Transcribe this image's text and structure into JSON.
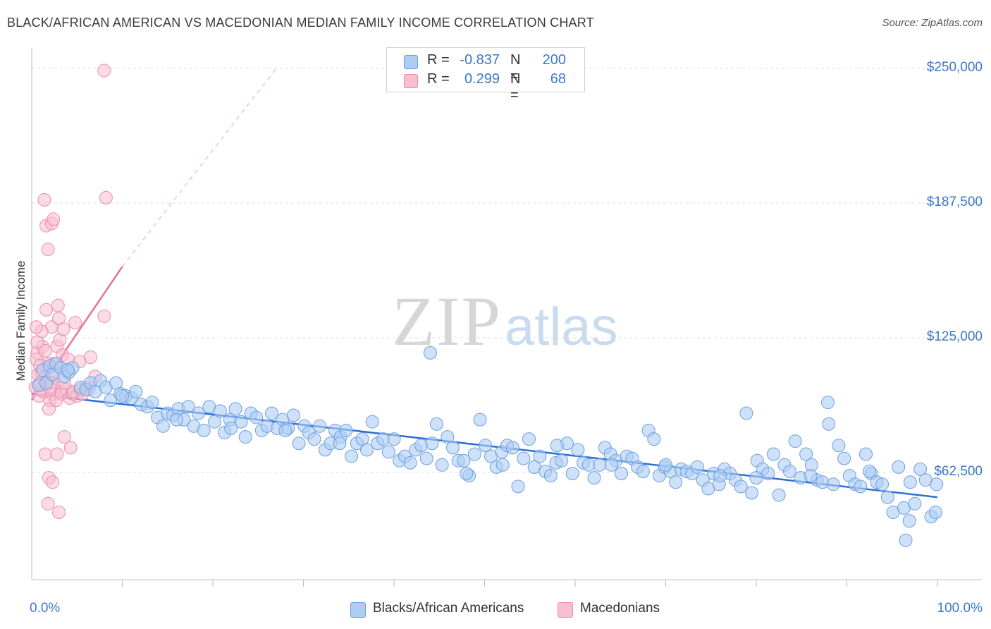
{
  "header": {
    "title": "BLACK/AFRICAN AMERICAN VS MACEDONIAN MEDIAN FAMILY INCOME CORRELATION CHART",
    "source": "Source: ZipAtlas.com"
  },
  "watermark": {
    "zip": "ZIP",
    "atlas": "atlas"
  },
  "legend": {
    "rows": [
      {
        "r_label": "R =",
        "r_value": "-0.837",
        "n_label": "N =",
        "n_value": "200",
        "color": "#aecdf3"
      },
      {
        "r_label": "R =",
        "r_value": "0.299",
        "n_label": "N =",
        "n_value": "68",
        "color": "#f8bfd0"
      }
    ]
  },
  "colors": {
    "blue_fill": "#aecdf3",
    "blue_stroke": "#6a9fe0",
    "blue_line": "#2b6fd4",
    "pink_fill": "#f8bfd0",
    "pink_stroke": "#ee8ab0",
    "pink_line": "#e8729c",
    "tick_text": "#3c78c8"
  },
  "chart_data": {
    "type": "scatter",
    "title": "BLACK/AFRICAN AMERICAN VS MACEDONIAN MEDIAN FAMILY INCOME CORRELATION CHART",
    "xlabel": "",
    "ylabel": "Median Family Income",
    "xlim": [
      0,
      100
    ],
    "ylim": [
      7000,
      260000
    ],
    "x_tick_labels": [
      "0.0%",
      "100.0%"
    ],
    "y_ticks": [
      {
        "value": 250000,
        "label": "$250,000"
      },
      {
        "value": 187500,
        "label": "$187,500"
      },
      {
        "value": 125000,
        "label": "$125,000"
      },
      {
        "value": 62500,
        "label": "$62,500"
      }
    ],
    "grid": true,
    "series": [
      {
        "name": "Blacks/African Americans",
        "trend": {
          "x0": 0,
          "y0": 99000,
          "x1": 100,
          "y1": 51000
        },
        "points": [
          [
            0.8,
            103000
          ],
          [
            1.2,
            110000
          ],
          [
            1.6,
            104000
          ],
          [
            2.0,
            112000
          ],
          [
            2.3,
            108000
          ],
          [
            2.7,
            113000
          ],
          [
            3.2,
            111000
          ],
          [
            3.6,
            107000
          ],
          [
            4.1,
            109000
          ],
          [
            4.5,
            111000
          ],
          [
            5.4,
            102000
          ],
          [
            6.0,
            101000
          ],
          [
            6.5,
            104000
          ],
          [
            7.0,
            100000
          ],
          [
            7.6,
            105000
          ],
          [
            8.2,
            102000
          ],
          [
            8.7,
            96000
          ],
          [
            9.3,
            104000
          ],
          [
            9.8,
            99000
          ],
          [
            10.4,
            98000
          ],
          [
            11.0,
            97000
          ],
          [
            11.5,
            100000
          ],
          [
            12.1,
            94000
          ],
          [
            12.8,
            93000
          ],
          [
            13.3,
            95000
          ],
          [
            13.9,
            88000
          ],
          [
            14.5,
            84000
          ],
          [
            15.0,
            90000
          ],
          [
            15.6,
            89000
          ],
          [
            16.2,
            92000
          ],
          [
            16.8,
            87000
          ],
          [
            17.3,
            93000
          ],
          [
            17.9,
            84000
          ],
          [
            18.4,
            90000
          ],
          [
            19.0,
            82000
          ],
          [
            19.6,
            93000
          ],
          [
            20.2,
            86000
          ],
          [
            20.8,
            91000
          ],
          [
            21.3,
            81000
          ],
          [
            21.9,
            87000
          ],
          [
            22.5,
            92000
          ],
          [
            23.1,
            86000
          ],
          [
            23.6,
            79000
          ],
          [
            24.2,
            90000
          ],
          [
            24.8,
            88000
          ],
          [
            25.4,
            82000
          ],
          [
            26.0,
            84000
          ],
          [
            26.5,
            90000
          ],
          [
            27.1,
            83000
          ],
          [
            27.7,
            87000
          ],
          [
            28.3,
            83000
          ],
          [
            28.9,
            89000
          ],
          [
            29.5,
            76000
          ],
          [
            30.1,
            84000
          ],
          [
            30.6,
            81000
          ],
          [
            31.2,
            78000
          ],
          [
            31.8,
            84000
          ],
          [
            32.4,
            73000
          ],
          [
            33.0,
            76000
          ],
          [
            33.5,
            82000
          ],
          [
            34.1,
            79000
          ],
          [
            34.7,
            82000
          ],
          [
            35.3,
            70000
          ],
          [
            35.9,
            76000
          ],
          [
            36.5,
            78000
          ],
          [
            37.0,
            73000
          ],
          [
            37.6,
            86000
          ],
          [
            38.2,
            76000
          ],
          [
            38.8,
            78000
          ],
          [
            39.4,
            72000
          ],
          [
            40.0,
            78000
          ],
          [
            40.6,
            68000
          ],
          [
            41.2,
            70000
          ],
          [
            41.8,
            67000
          ],
          [
            42.4,
            73000
          ],
          [
            43.0,
            75000
          ],
          [
            43.6,
            69000
          ],
          [
            44.2,
            76000
          ],
          [
            44.7,
            85000
          ],
          [
            45.3,
            66000
          ],
          [
            45.9,
            79000
          ],
          [
            46.5,
            74000
          ],
          [
            47.1,
            68000
          ],
          [
            47.7,
            68000
          ],
          [
            48.3,
            61000
          ],
          [
            48.9,
            71000
          ],
          [
            49.5,
            87000
          ],
          [
            50.1,
            75000
          ],
          [
            50.7,
            70000
          ],
          [
            51.3,
            65000
          ],
          [
            51.9,
            72000
          ],
          [
            52.5,
            75000
          ],
          [
            53.1,
            74000
          ],
          [
            53.7,
            56000
          ],
          [
            54.3,
            69000
          ],
          [
            54.9,
            78000
          ],
          [
            55.5,
            65000
          ],
          [
            56.1,
            70000
          ],
          [
            56.7,
            63000
          ],
          [
            57.3,
            61000
          ],
          [
            57.9,
            67000
          ],
          [
            58.5,
            68000
          ],
          [
            59.1,
            76000
          ],
          [
            59.7,
            62000
          ],
          [
            60.3,
            73000
          ],
          [
            60.9,
            67000
          ],
          [
            61.5,
            66000
          ],
          [
            62.1,
            60000
          ],
          [
            62.7,
            66000
          ],
          [
            63.3,
            74000
          ],
          [
            63.9,
            71000
          ],
          [
            64.5,
            68000
          ],
          [
            65.1,
            62000
          ],
          [
            65.7,
            70000
          ],
          [
            66.3,
            69000
          ],
          [
            66.9,
            65000
          ],
          [
            67.5,
            63000
          ],
          [
            68.1,
            82000
          ],
          [
            68.7,
            78000
          ],
          [
            69.3,
            61000
          ],
          [
            69.9,
            65000
          ],
          [
            70.5,
            63000
          ],
          [
            71.1,
            58000
          ],
          [
            71.7,
            64000
          ],
          [
            72.3,
            63000
          ],
          [
            72.9,
            62000
          ],
          [
            73.5,
            65000
          ],
          [
            74.1,
            59000
          ],
          [
            74.7,
            55000
          ],
          [
            75.3,
            62000
          ],
          [
            75.9,
            57000
          ],
          [
            76.5,
            64000
          ],
          [
            77.1,
            62000
          ],
          [
            77.7,
            59000
          ],
          [
            78.3,
            56000
          ],
          [
            78.9,
            90000
          ],
          [
            79.5,
            53000
          ],
          [
            80.1,
            68000
          ],
          [
            80.7,
            64000
          ],
          [
            81.3,
            62000
          ],
          [
            81.9,
            71000
          ],
          [
            82.5,
            52000
          ],
          [
            83.1,
            66000
          ],
          [
            83.7,
            63000
          ],
          [
            84.3,
            77000
          ],
          [
            84.9,
            60000
          ],
          [
            85.5,
            71000
          ],
          [
            86.1,
            66000
          ],
          [
            86.7,
            59000
          ],
          [
            87.3,
            58000
          ],
          [
            87.9,
            95000
          ],
          [
            88.5,
            57000
          ],
          [
            89.1,
            75000
          ],
          [
            89.7,
            69000
          ],
          [
            90.3,
            61000
          ],
          [
            90.9,
            57000
          ],
          [
            91.5,
            56000
          ],
          [
            92.1,
            71000
          ],
          [
            92.7,
            62000
          ],
          [
            93.3,
            58000
          ],
          [
            93.9,
            57000
          ],
          [
            94.5,
            51000
          ],
          [
            95.1,
            44000
          ],
          [
            95.7,
            65000
          ],
          [
            96.3,
            46000
          ],
          [
            96.9,
            40000
          ],
          [
            97.5,
            48000
          ],
          [
            98.1,
            64000
          ],
          [
            98.7,
            59000
          ],
          [
            99.3,
            42000
          ],
          [
            99.8,
            44000
          ],
          [
            99.9,
            57000
          ],
          [
            48.0,
            62000
          ],
          [
            52.0,
            66000
          ],
          [
            58.0,
            75000
          ],
          [
            64.0,
            66000
          ],
          [
            70.0,
            66000
          ],
          [
            76.0,
            61000
          ],
          [
            80.0,
            60000
          ],
          [
            86.0,
            61000
          ],
          [
            88.0,
            85000
          ],
          [
            92.5,
            63000
          ],
          [
            96.5,
            31000
          ],
          [
            97.0,
            58000
          ],
          [
            44.0,
            118000
          ],
          [
            34.0,
            76000
          ],
          [
            28.0,
            82000
          ],
          [
            22.0,
            83000
          ],
          [
            16.0,
            87000
          ],
          [
            10.0,
            98000
          ],
          [
            4.0,
            110000
          ]
        ]
      },
      {
        "name": "Macedonians",
        "trend": {
          "x0": 0,
          "y0": 96000,
          "x1": 10,
          "y1": 158000
        },
        "trend_dashed": {
          "x0": 10,
          "y0": 158000,
          "x1": 27,
          "y1": 250000
        },
        "points": [
          [
            0.4,
            102000
          ],
          [
            0.6,
            118000
          ],
          [
            0.8,
            98000
          ],
          [
            1.0,
            109000
          ],
          [
            1.2,
            121000
          ],
          [
            1.4,
            106000
          ],
          [
            1.6,
            138000
          ],
          [
            1.8,
            113000
          ],
          [
            2.0,
            96000
          ],
          [
            2.2,
            130000
          ],
          [
            2.4,
            104000
          ],
          [
            2.6,
            109000
          ],
          [
            2.8,
            121000
          ],
          [
            3.0,
            134000
          ],
          [
            3.2,
            100000
          ],
          [
            3.4,
            117000
          ],
          [
            0.5,
            115000
          ],
          [
            0.7,
            108000
          ],
          [
            0.9,
            104000
          ],
          [
            1.1,
            128000
          ],
          [
            1.3,
            100000
          ],
          [
            1.5,
            119000
          ],
          [
            1.7,
            111000
          ],
          [
            1.9,
            92000
          ],
          [
            2.1,
            104000
          ],
          [
            2.3,
            99000
          ],
          [
            2.5,
            113000
          ],
          [
            2.7,
            96000
          ],
          [
            2.9,
            140000
          ],
          [
            3.1,
            124000
          ],
          [
            3.3,
            99000
          ],
          [
            3.5,
            129000
          ],
          [
            3.8,
            101000
          ],
          [
            4.0,
            115000
          ],
          [
            4.2,
            97000
          ],
          [
            4.5,
            99000
          ],
          [
            4.8,
            132000
          ],
          [
            5.0,
            98000
          ],
          [
            5.3,
            114000
          ],
          [
            5.6,
            99000
          ],
          [
            6.0,
            102000
          ],
          [
            6.3,
            101000
          ],
          [
            1.4,
            189000
          ],
          [
            1.6,
            177000
          ],
          [
            1.8,
            166000
          ],
          [
            2.2,
            178000
          ],
          [
            2.4,
            180000
          ],
          [
            1.5,
            71000
          ],
          [
            1.9,
            60000
          ],
          [
            2.3,
            58000
          ],
          [
            2.8,
            71000
          ],
          [
            3.6,
            79000
          ],
          [
            4.3,
            74000
          ],
          [
            1.8,
            48000
          ],
          [
            3.0,
            44000
          ],
          [
            0.5,
            130000
          ],
          [
            0.6,
            123000
          ],
          [
            0.9,
            112000
          ],
          [
            1.0,
            101000
          ],
          [
            8.0,
            249000
          ],
          [
            8.2,
            190000
          ],
          [
            8.0,
            135000
          ],
          [
            3.6,
            104000
          ],
          [
            4.6,
            100000
          ],
          [
            5.4,
            101000
          ],
          [
            2.0,
            102000
          ],
          [
            6.5,
            116000
          ],
          [
            7.0,
            107000
          ]
        ]
      }
    ]
  }
}
